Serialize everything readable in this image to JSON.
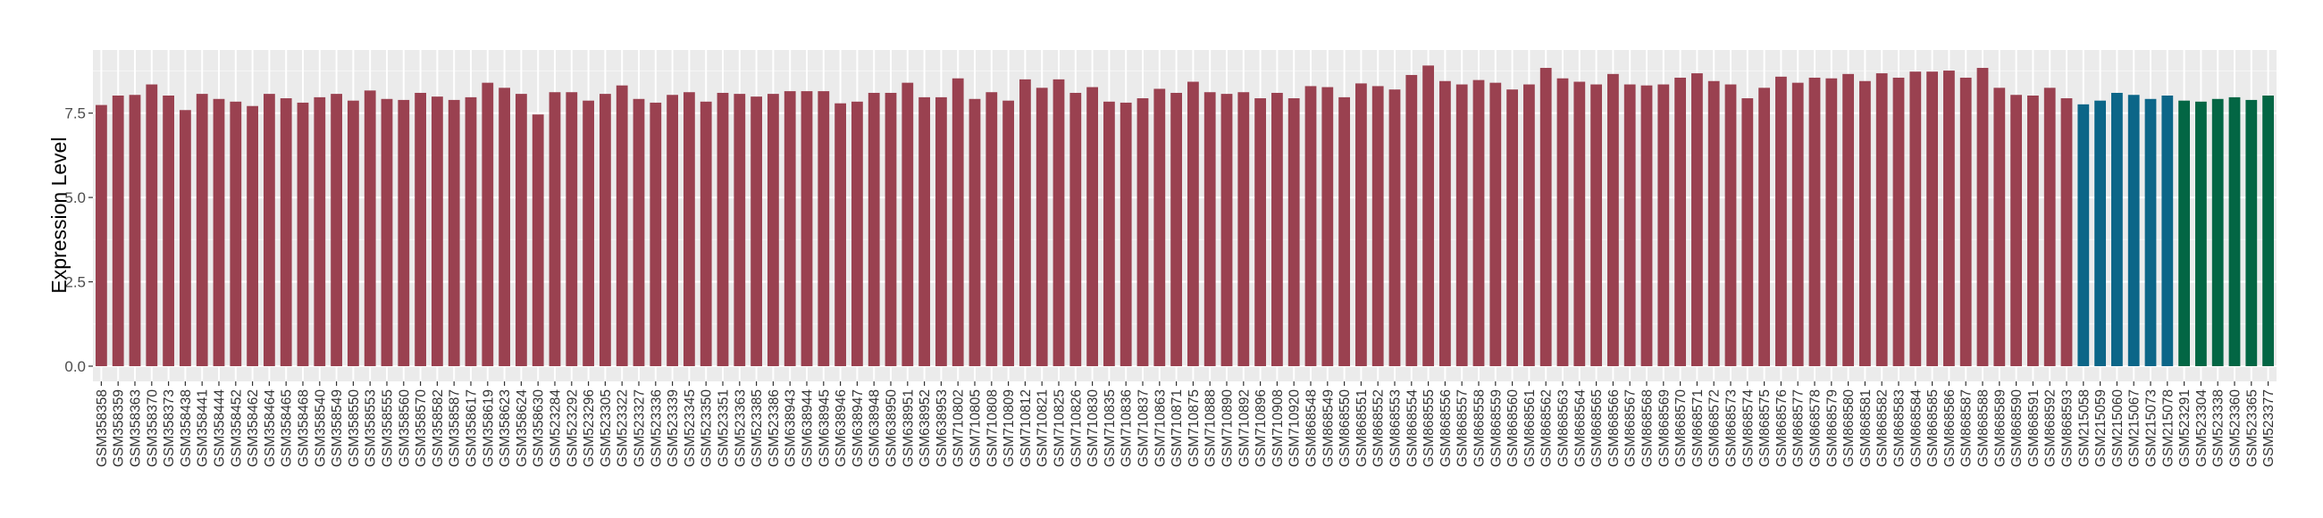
{
  "chart_data": {
    "type": "bar",
    "title": "",
    "xlabel": "",
    "ylabel": "Expression Level",
    "ylim": [
      -0.45,
      9.37
    ],
    "yticks": [
      "0.0",
      "2.5",
      "5.0",
      "7.5"
    ],
    "ytick_values": [
      0,
      2.5,
      5.0,
      7.5
    ],
    "grid": true,
    "legend": "none",
    "colors": {
      "red": "#9A4150",
      "blue": "#0C6688",
      "green": "#036644",
      "panel": "#EBEBEB",
      "grid": "#FFFFFF"
    },
    "categories": [
      "GSM358358",
      "GSM358359",
      "GSM358363",
      "GSM358370",
      "GSM358373",
      "GSM358438",
      "GSM358441",
      "GSM358444",
      "GSM358452",
      "GSM358462",
      "GSM358464",
      "GSM358465",
      "GSM358468",
      "GSM358540",
      "GSM358549",
      "GSM358550",
      "GSM358553",
      "GSM358555",
      "GSM358560",
      "GSM358570",
      "GSM358582",
      "GSM358587",
      "GSM358617",
      "GSM358619",
      "GSM358623",
      "GSM358624",
      "GSM358630",
      "GSM523284",
      "GSM523292",
      "GSM523296",
      "GSM523305",
      "GSM523322",
      "GSM523327",
      "GSM523336",
      "GSM523339",
      "GSM523345",
      "GSM523350",
      "GSM523351",
      "GSM523363",
      "GSM523385",
      "GSM523386",
      "GSM638943",
      "GSM638944",
      "GSM638945",
      "GSM638946",
      "GSM638947",
      "GSM638948",
      "GSM638950",
      "GSM638951",
      "GSM638952",
      "GSM638953",
      "GSM710802",
      "GSM710805",
      "GSM710808",
      "GSM710809",
      "GSM710812",
      "GSM710821",
      "GSM710825",
      "GSM710826",
      "GSM710830",
      "GSM710835",
      "GSM710836",
      "GSM710837",
      "GSM710863",
      "GSM710871",
      "GSM710875",
      "GSM710888",
      "GSM710890",
      "GSM710892",
      "GSM710896",
      "GSM710908",
      "GSM710920",
      "GSM868548",
      "GSM868549",
      "GSM868550",
      "GSM868551",
      "GSM868552",
      "GSM868553",
      "GSM868554",
      "GSM868555",
      "GSM868556",
      "GSM868557",
      "GSM868558",
      "GSM868559",
      "GSM868560",
      "GSM868561",
      "GSM868562",
      "GSM868563",
      "GSM868564",
      "GSM868565",
      "GSM868566",
      "GSM868567",
      "GSM868568",
      "GSM868569",
      "GSM868570",
      "GSM868571",
      "GSM868572",
      "GSM868573",
      "GSM868574",
      "GSM868575",
      "GSM868576",
      "GSM868577",
      "GSM868578",
      "GSM868579",
      "GSM868580",
      "GSM868581",
      "GSM868582",
      "GSM868583",
      "GSM868584",
      "GSM868585",
      "GSM868586",
      "GSM868587",
      "GSM868588",
      "GSM868589",
      "GSM868590",
      "GSM868591",
      "GSM868592",
      "GSM868593",
      "GSM215058",
      "GSM215059",
      "GSM215060",
      "GSM215067",
      "GSM215073",
      "GSM215078",
      "GSM523291",
      "GSM523304",
      "GSM523338",
      "GSM523360",
      "GSM523365",
      "GSM523377"
    ],
    "values": [
      7.74,
      8.02,
      8.04,
      8.35,
      8.02,
      7.59,
      8.07,
      7.92,
      7.84,
      7.71,
      8.07,
      7.94,
      7.81,
      7.97,
      8.07,
      7.87,
      8.17,
      7.92,
      7.89,
      8.1,
      7.99,
      7.89,
      7.97,
      8.4,
      8.25,
      8.07,
      7.46,
      8.12,
      8.12,
      7.87,
      8.07,
      8.32,
      7.92,
      7.81,
      8.04,
      8.12,
      7.84,
      8.1,
      8.07,
      7.99,
      8.07,
      8.15,
      8.15,
      8.15,
      7.79,
      7.84,
      8.1,
      8.1,
      8.4,
      7.97,
      7.97,
      8.53,
      7.92,
      8.12,
      7.87,
      8.5,
      8.25,
      8.5,
      8.1,
      8.27,
      7.84,
      7.81,
      7.94,
      8.22,
      8.1,
      8.43,
      8.12,
      8.07,
      8.12,
      7.94,
      8.1,
      7.94,
      8.3,
      8.27,
      7.97,
      8.38,
      8.3,
      8.2,
      8.63,
      8.91,
      8.45,
      8.35,
      8.48,
      8.4,
      8.2,
      8.35,
      8.84,
      8.53,
      8.43,
      8.35,
      8.66,
      8.35,
      8.32,
      8.35,
      8.55,
      8.68,
      8.45,
      8.35,
      7.94,
      8.25,
      8.58,
      8.4,
      8.55,
      8.53,
      8.66,
      8.45,
      8.68,
      8.55,
      8.73,
      8.73,
      8.76,
      8.55,
      8.84,
      8.25,
      8.04,
      8.02,
      8.25,
      7.94,
      7.76,
      7.87,
      8.1,
      8.04,
      7.92,
      8.02,
      7.87,
      7.84,
      7.92,
      7.97,
      7.89,
      8.02
    ],
    "bar_colors_by_group": [
      {
        "color": "red",
        "count": 118
      },
      {
        "color": "blue",
        "count": 6
      },
      {
        "color": "green",
        "count": 6
      }
    ]
  }
}
